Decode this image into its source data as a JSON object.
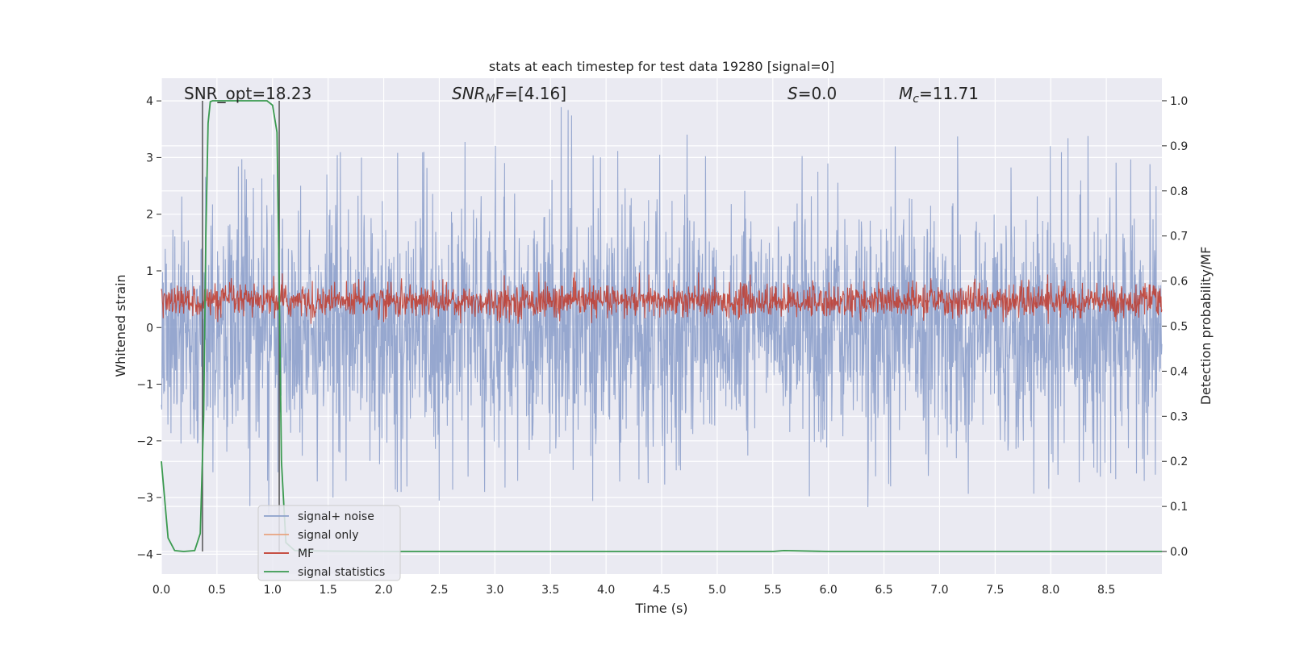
{
  "chart_data": {
    "type": "line",
    "title": "stats at each timestep for test data 19280 [signal=0]",
    "xlabel": "Time (s)",
    "ylabel_left": "Whitened strain",
    "ylabel_right": "Detection probability/MF",
    "xlim": [
      0.0,
      9.0
    ],
    "ylim_left": [
      -4.35,
      4.4
    ],
    "ylim_right": [
      -0.05,
      1.05
    ],
    "x_ticks": [
      "0.0",
      "0.5",
      "1.0",
      "1.5",
      "2.0",
      "2.5",
      "3.0",
      "3.5",
      "4.0",
      "4.5",
      "5.0",
      "5.5",
      "6.0",
      "6.5",
      "7.0",
      "7.5",
      "8.0",
      "8.5"
    ],
    "y_left_ticks": [
      "4",
      "3",
      "2",
      "1",
      "0",
      "−1",
      "−2",
      "−3",
      "−4"
    ],
    "y_right_ticks": [
      "1.0",
      "0.9",
      "0.8",
      "0.7",
      "0.6",
      "0.5",
      "0.4",
      "0.3",
      "0.2",
      "0.1",
      "0.0"
    ],
    "grid": true,
    "annotations": {
      "snr_opt": "SNR_opt=18.23",
      "snr_mf_prefix": "SNR",
      "snr_mf_sub": "M",
      "snr_mf_rest": "F=[4.16]",
      "s_var": "S",
      "s_val": "=0.0",
      "mc_var": "M",
      "mc_sub": "c",
      "mc_val": "=11.71"
    },
    "vlines_x": [
      0.37,
      1.06
    ],
    "legend": {
      "position": "lower-left",
      "entries": [
        {
          "label": "signal+ noise",
          "color": "#8da0cb"
        },
        {
          "label": "signal only",
          "color": "#e8a37f"
        },
        {
          "label": "MF",
          "color": "#c0392b"
        },
        {
          "label": "signal statistics",
          "color": "#3a9a4f"
        }
      ]
    },
    "series": [
      {
        "name": "signal+ noise",
        "axis": "left",
        "color": "#8da0cb",
        "description": "whitened strain noise, roughly symmetric about 0 with peaks up to about 4.0 and troughs down to about -3.5",
        "envelope_upper": [
          2.5,
          2.9,
          3.0,
          2.8,
          2.7,
          3.0,
          3.2,
          3.0,
          3.4,
          3.1,
          3.5,
          3.6,
          3.3,
          3.4,
          4.0,
          3.3,
          3.2,
          3.1,
          3.5,
          3.3,
          3.3,
          3.4,
          3.4,
          3.1,
          3.4,
          3.4,
          3.5,
          3.4,
          3.4,
          3.4,
          3.0,
          3.2,
          3.4,
          3.6,
          3.3,
          3.0
        ],
        "envelope_lower": [
          -2.6,
          -2.8,
          -3.0,
          -3.3,
          -3.5,
          -3.1,
          -3.0,
          -2.6,
          -2.9,
          -3.2,
          -3.0,
          -2.9,
          -3.0,
          -3.1,
          -3.0,
          -3.2,
          -3.0,
          -2.8,
          -2.9,
          -3.0,
          -3.1,
          -3.0,
          -3.0,
          -3.5,
          -3.0,
          -3.3,
          -3.0,
          -3.0,
          -2.7,
          -3.2,
          -3.2,
          -3.1,
          -3.0,
          -2.9,
          -3.0,
          -2.8
        ]
      },
      {
        "name": "MF",
        "axis": "right",
        "color": "#c0392b",
        "description": "matched-filter output fluctuating between about 0.51 and 0.62",
        "band": [
          0.51,
          0.6
        ]
      },
      {
        "name": "signal statistics",
        "axis": "right",
        "color": "#3a9a4f",
        "x": [
          0.0,
          0.06,
          0.12,
          0.2,
          0.3,
          0.35,
          0.38,
          0.4,
          0.42,
          0.44,
          0.46,
          0.5,
          0.6,
          0.8,
          0.95,
          1.0,
          1.04,
          1.06,
          1.08,
          1.12,
          1.2,
          1.5,
          2.0,
          3.0,
          4.0,
          5.0,
          5.5,
          5.6,
          6.0,
          7.0,
          8.0,
          9.0
        ],
        "y": [
          0.2,
          0.03,
          0.002,
          0.0,
          0.002,
          0.04,
          0.3,
          0.7,
          0.95,
          0.998,
          1.0,
          1.0,
          1.0,
          1.0,
          1.0,
          0.99,
          0.93,
          0.6,
          0.2,
          0.02,
          0.002,
          0.001,
          0.0,
          0.0,
          0.0,
          0.0,
          0.0,
          0.002,
          0.0,
          0.0,
          0.0,
          0.0
        ]
      }
    ]
  }
}
